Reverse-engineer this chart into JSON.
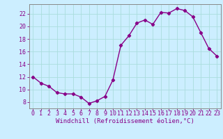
{
  "x": [
    0,
    1,
    2,
    3,
    4,
    5,
    6,
    7,
    8,
    9,
    10,
    11,
    12,
    13,
    14,
    15,
    16,
    17,
    18,
    19,
    20,
    21,
    22,
    23
  ],
  "y": [
    12,
    11,
    10.5,
    9.5,
    9.3,
    9.3,
    8.8,
    7.8,
    8.2,
    8.9,
    11.5,
    17,
    18.5,
    20.5,
    21,
    20.3,
    22.2,
    22.1,
    22.8,
    22.5,
    21.5,
    19,
    16.5,
    15.3
  ],
  "line_color": "#880088",
  "marker": "D",
  "marker_size": 2.2,
  "bg_color": "#cceeff",
  "grid_color": "#aadddd",
  "xlabel": "Windchill (Refroidissement éolien,°C)",
  "ylim": [
    7.0,
    23.5
  ],
  "xlim": [
    -0.5,
    23.5
  ],
  "yticks": [
    8,
    10,
    12,
    14,
    16,
    18,
    20,
    22
  ],
  "xticks": [
    0,
    1,
    2,
    3,
    4,
    5,
    6,
    7,
    8,
    9,
    10,
    11,
    12,
    13,
    14,
    15,
    16,
    17,
    18,
    19,
    20,
    21,
    22,
    23
  ],
  "tick_color": "#880088",
  "label_color": "#880088",
  "label_fontsize": 6.5,
  "tick_fontsize": 6.0,
  "axis_color": "#888888",
  "linewidth": 1.0
}
